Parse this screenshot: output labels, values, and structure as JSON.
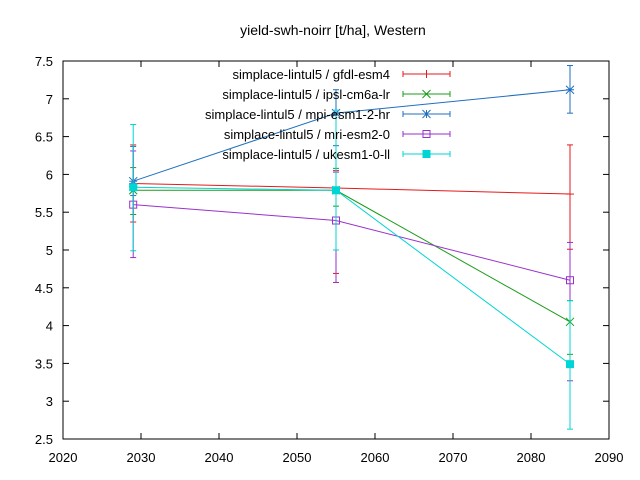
{
  "chart_data": {
    "type": "line",
    "title": "yield-swh-noirr [t/ha], Western",
    "xlabel": "",
    "ylabel": "",
    "xlim": [
      2020,
      2090
    ],
    "ylim": [
      2.5,
      7.5
    ],
    "xticks": [
      2020,
      2030,
      2040,
      2050,
      2060,
      2070,
      2080,
      2090
    ],
    "yticks": [
      2.5,
      3,
      3.5,
      4,
      4.5,
      5,
      5.5,
      6,
      6.5,
      7,
      7.5
    ],
    "grid": false,
    "legend_position": "top-right",
    "x": [
      2029,
      2055,
      2085
    ],
    "series": [
      {
        "name": "simplace-lintul5 / gfdl-esm4",
        "color": "#e41a1c",
        "marker": "plus",
        "values": [
          5.88,
          5.82,
          5.74
        ],
        "error_low": [
          5.37,
          4.69,
          5.01
        ],
        "error_high": [
          6.39,
          6.05,
          6.39
        ]
      },
      {
        "name": "simplace-lintul5 / ipsl-cm6a-lr",
        "color": "#1a9c1a",
        "marker": "x",
        "values": [
          5.79,
          5.79,
          4.05
        ],
        "error_low": [
          5.47,
          5.58,
          3.62
        ],
        "error_high": [
          6.09,
          6.08,
          4.33
        ]
      },
      {
        "name": "simplace-lintul5 / mpi-esm1-2-hr",
        "color": "#1f6fbf",
        "marker": "star",
        "values": [
          5.91,
          6.81,
          7.12
        ],
        "error_low": [
          5.72,
          6.38,
          6.81
        ],
        "error_high": [
          6.37,
          7.12,
          7.44
        ]
      },
      {
        "name": "simplace-lintul5 / mri-esm2-0",
        "color": "#9932cc",
        "marker": "square",
        "values": [
          5.6,
          5.39,
          4.6
        ],
        "error_low": [
          4.9,
          4.57,
          3.27
        ],
        "error_high": [
          6.31,
          6.03,
          5.1
        ]
      },
      {
        "name": "simplace-lintul5 / ukesm1-0-ll",
        "color": "#00d5d5",
        "marker": "filled-square",
        "values": [
          5.83,
          5.79,
          3.49
        ],
        "error_low": [
          4.99,
          5.0,
          2.63
        ],
        "error_high": [
          6.66,
          6.85,
          4.33
        ]
      }
    ]
  }
}
